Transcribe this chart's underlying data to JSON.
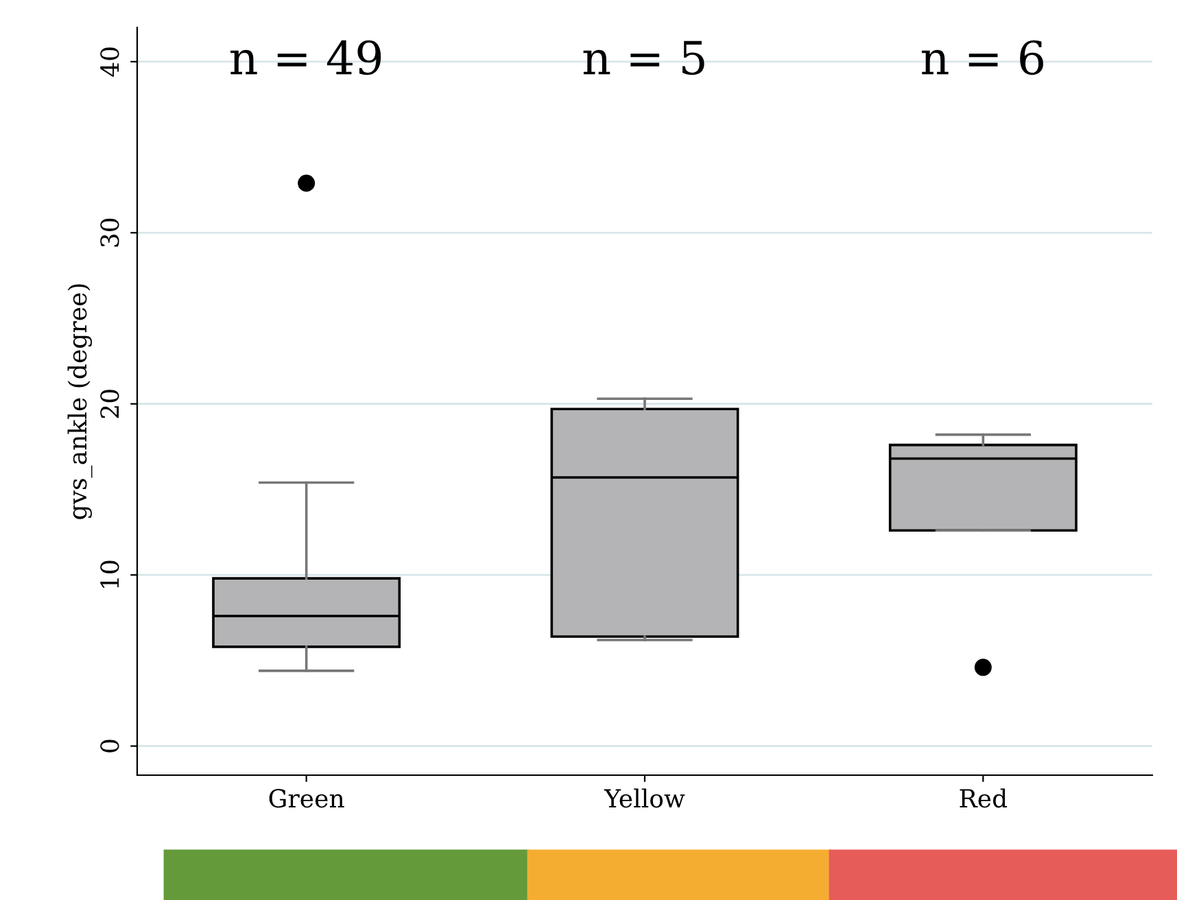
{
  "chart_data": {
    "type": "box",
    "ylabel": "gvs_ankle (degree)",
    "categories": [
      "Green",
      "Yellow",
      "Red"
    ],
    "boxes": [
      {
        "low": 4.4,
        "q1": 5.8,
        "median": 7.6,
        "q3": 9.8,
        "high": 15.4,
        "outliers": [
          32.9
        ]
      },
      {
        "low": 6.2,
        "q1": 6.4,
        "median": 15.7,
        "q3": 19.7,
        "high": 20.3
      },
      {
        "low": 12.6,
        "q1": 12.6,
        "median": 16.8,
        "q3": 17.6,
        "high": 18.2,
        "outliers": [
          4.6
        ]
      }
    ],
    "color": "#b4b4b6",
    "ylim": [
      -1.7,
      42
    ],
    "yticks": [
      0,
      10,
      20,
      30,
      40
    ],
    "grid": "y",
    "annotations": [
      "n = 49",
      "n = 5",
      "n = 6"
    ]
  }
}
